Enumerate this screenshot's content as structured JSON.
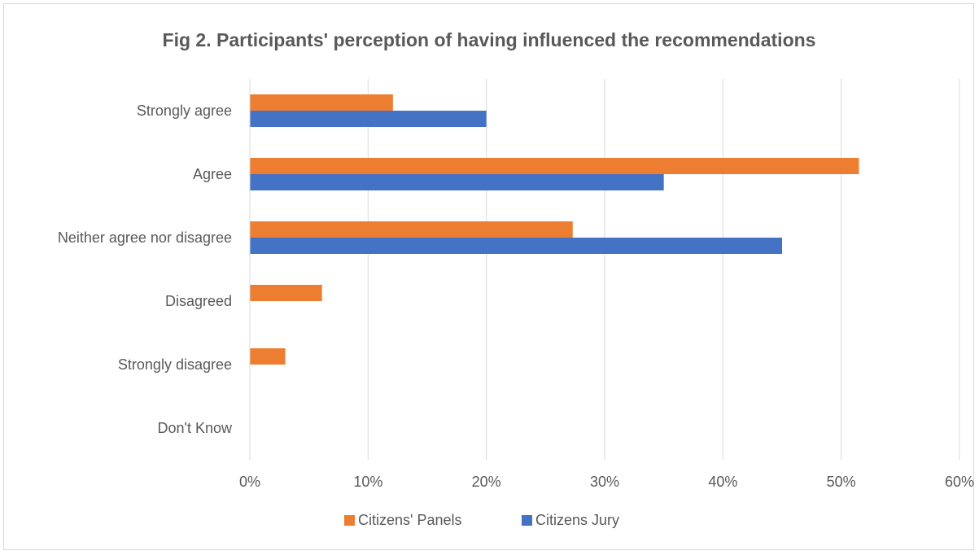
{
  "chart_data": {
    "type": "bar",
    "orientation": "horizontal",
    "title": "Fig 2. Participants' perception of having influenced the recommendations",
    "categories": [
      "Strongly agree",
      "Agree",
      "Neither agree nor disagree",
      "Disagreed",
      "Strongly disagree",
      "Don't Know"
    ],
    "series": [
      {
        "name": "Citizens' Panels",
        "color": "#ed7d31",
        "values": [
          12.1,
          51.5,
          27.3,
          6.1,
          3.0,
          0
        ]
      },
      {
        "name": "Citizens Jury",
        "color": "#4472c4",
        "values": [
          20,
          35,
          45,
          0,
          0,
          0
        ]
      }
    ],
    "xlim": [
      0,
      60
    ],
    "xticks": [
      "0%",
      "10%",
      "20%",
      "30%",
      "40%",
      "50%",
      "60%"
    ],
    "grid": true,
    "legend_position": "bottom"
  }
}
